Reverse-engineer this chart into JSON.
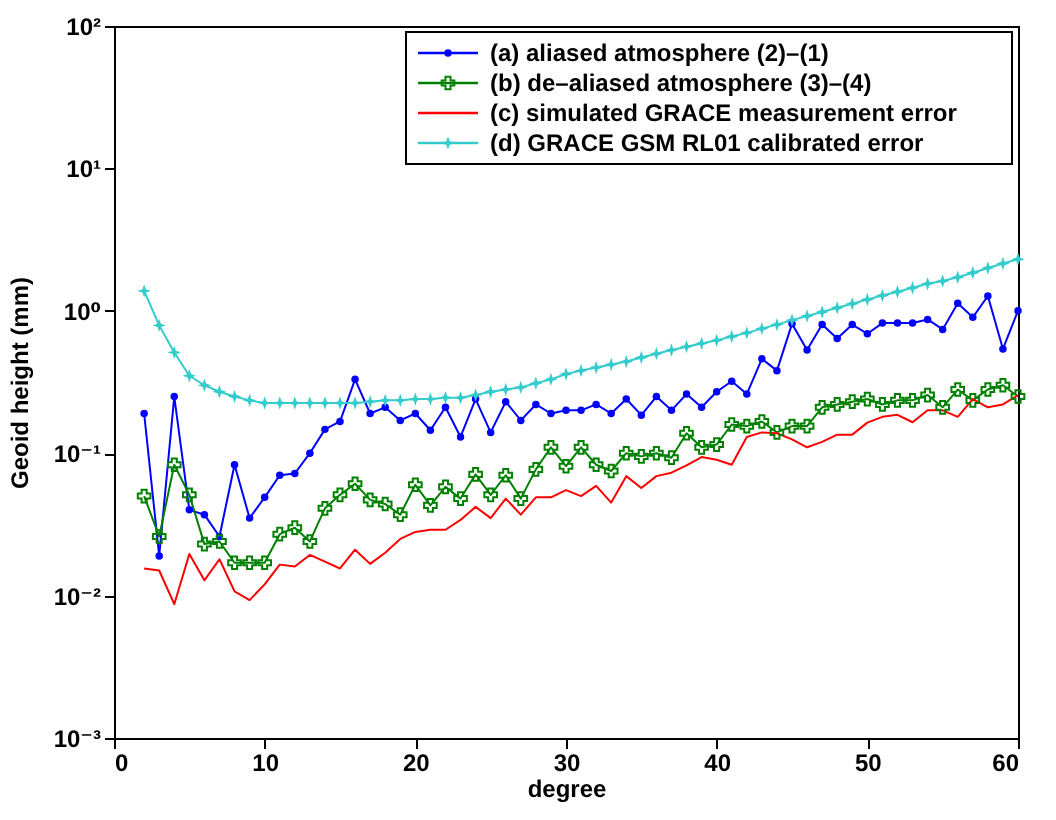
{
  "chart_data": {
    "type": "line",
    "xlabel": "degree",
    "ylabel": "Geoid height (mm)",
    "log": "y",
    "grid": false,
    "legend": "top right",
    "xlim": [
      0,
      60
    ],
    "xticks": [
      0,
      10,
      20,
      30,
      40,
      50,
      60
    ],
    "ylim": [
      0.001,
      100
    ],
    "yticks": [
      {
        "value": 0.001,
        "label": "10⁻³"
      },
      {
        "value": 0.01,
        "label": "10⁻²"
      },
      {
        "value": 0.1,
        "label": "10⁻¹"
      },
      {
        "value": 1,
        "label": "10⁰"
      },
      {
        "value": 10,
        "label": "10¹"
      },
      {
        "value": 100,
        "label": "10²"
      }
    ],
    "x": [
      2,
      3,
      4,
      5,
      6,
      7,
      8,
      9,
      10,
      11,
      12,
      13,
      14,
      15,
      16,
      17,
      18,
      19,
      20,
      21,
      22,
      23,
      24,
      25,
      26,
      27,
      28,
      29,
      30,
      31,
      32,
      33,
      34,
      35,
      36,
      37,
      38,
      39,
      40,
      41,
      42,
      43,
      44,
      45,
      46,
      47,
      48,
      49,
      50,
      51,
      52,
      53,
      54,
      55,
      56,
      57,
      58,
      59,
      60
    ],
    "series": [
      {
        "name": "(a) aliased atmosphere (2)–(1)",
        "color": "#0000ff",
        "marker": "circle",
        "values": [
          0.19,
          0.019,
          0.25,
          0.04,
          0.037,
          0.026,
          0.083,
          0.035,
          0.049,
          0.07,
          0.072,
          0.1,
          0.147,
          0.167,
          0.33,
          0.19,
          0.21,
          0.17,
          0.19,
          0.145,
          0.21,
          0.13,
          0.24,
          0.14,
          0.23,
          0.17,
          0.22,
          0.19,
          0.2,
          0.2,
          0.22,
          0.19,
          0.24,
          0.185,
          0.25,
          0.2,
          0.26,
          0.21,
          0.27,
          0.32,
          0.26,
          0.46,
          0.38,
          0.81,
          0.53,
          0.8,
          0.64,
          0.8,
          0.69,
          0.82,
          0.82,
          0.82,
          0.87,
          0.74,
          1.13,
          0.9,
          1.27,
          0.54,
          1.0
        ]
      },
      {
        "name": "(b) de–aliased atmosphere (3)–(4)",
        "color": "#008000",
        "marker": "cross",
        "values": [
          0.05,
          0.026,
          0.083,
          0.051,
          0.023,
          0.024,
          0.017,
          0.017,
          0.017,
          0.027,
          0.03,
          0.024,
          0.041,
          0.051,
          0.061,
          0.047,
          0.044,
          0.037,
          0.06,
          0.043,
          0.058,
          0.048,
          0.071,
          0.051,
          0.07,
          0.048,
          0.077,
          0.11,
          0.081,
          0.11,
          0.083,
          0.075,
          0.1,
          0.095,
          0.1,
          0.093,
          0.138,
          0.11,
          0.115,
          0.159,
          0.155,
          0.167,
          0.14,
          0.155,
          0.155,
          0.21,
          0.22,
          0.23,
          0.24,
          0.22,
          0.235,
          0.235,
          0.256,
          0.21,
          0.28,
          0.235,
          0.28,
          0.3,
          0.25
        ]
      },
      {
        "name": "(c) simulated GRACE measurement error",
        "color": "#ff0000",
        "marker": "none",
        "values": [
          0.0155,
          0.015,
          0.0087,
          0.0196,
          0.0128,
          0.018,
          0.0107,
          0.0093,
          0.012,
          0.0165,
          0.016,
          0.0193,
          0.0173,
          0.0155,
          0.021,
          0.0167,
          0.02,
          0.025,
          0.028,
          0.029,
          0.029,
          0.034,
          0.042,
          0.035,
          0.048,
          0.037,
          0.049,
          0.049,
          0.055,
          0.05,
          0.059,
          0.045,
          0.069,
          0.057,
          0.069,
          0.073,
          0.082,
          0.094,
          0.09,
          0.083,
          0.13,
          0.14,
          0.138,
          0.125,
          0.11,
          0.12,
          0.135,
          0.135,
          0.164,
          0.18,
          0.186,
          0.165,
          0.2,
          0.2,
          0.18,
          0.24,
          0.21,
          0.22,
          0.256
        ]
      },
      {
        "name": "(d) GRACE GSM RL01 calibrated error",
        "color": "#33cccc",
        "marker": "star",
        "values": [
          1.38,
          0.79,
          0.51,
          0.35,
          0.3,
          0.27,
          0.25,
          0.235,
          0.225,
          0.225,
          0.225,
          0.225,
          0.225,
          0.225,
          0.225,
          0.23,
          0.235,
          0.235,
          0.24,
          0.24,
          0.245,
          0.245,
          0.256,
          0.27,
          0.28,
          0.29,
          0.31,
          0.33,
          0.36,
          0.38,
          0.4,
          0.42,
          0.44,
          0.47,
          0.5,
          0.53,
          0.56,
          0.59,
          0.62,
          0.66,
          0.7,
          0.75,
          0.8,
          0.86,
          0.92,
          0.98,
          1.05,
          1.12,
          1.2,
          1.28,
          1.36,
          1.45,
          1.55,
          1.62,
          1.72,
          1.85,
          2.0,
          2.15,
          2.3
        ]
      }
    ]
  }
}
